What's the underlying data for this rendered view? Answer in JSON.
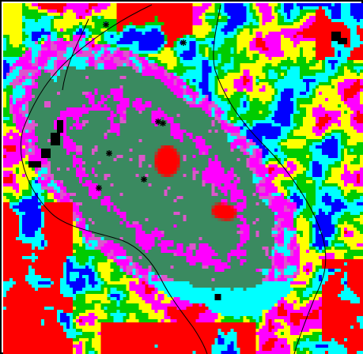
{
  "map": {
    "kind": "classified raster land-cover map",
    "legend_present": false,
    "class_colors": {
      "red": "#ff0000",
      "green": "#00cc00",
      "blue": "#0000ff",
      "yellow": "#ffff00",
      "cyan": "#00ffff",
      "magenta": "#ff00ff",
      "pink": "#dd55cc",
      "dark-green": "#3a8a60",
      "gray": "#b0b0b0",
      "black": "#000000",
      "white": "#ffffff"
    },
    "boundary_line_color": "#000000",
    "point_marker": "asterisk"
  }
}
